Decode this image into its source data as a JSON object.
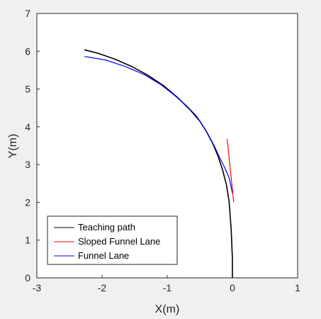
{
  "chart_data": {
    "type": "line",
    "xlabel": "X(m)",
    "ylabel": "Y(m)",
    "xlim": [
      -3,
      1
    ],
    "ylim": [
      0,
      7
    ],
    "xticks": [
      "-3",
      "-2",
      "-1",
      "0",
      "1"
    ],
    "yticks": [
      "0",
      "1",
      "2",
      "3",
      "4",
      "5",
      "6",
      "7"
    ],
    "grid": false,
    "legend_position": "bottom-left",
    "series": [
      {
        "name": "Teaching path",
        "color": "#000000",
        "x": [
          -2.27,
          -2.05,
          -1.8,
          -1.55,
          -1.3,
          -1.05,
          -0.85,
          -0.65,
          -0.5,
          -0.4,
          -0.3,
          -0.22,
          -0.15,
          -0.09,
          -0.05,
          -0.02,
          0.0,
          0.0
        ],
        "y": [
          6.04,
          5.94,
          5.79,
          5.6,
          5.37,
          5.08,
          4.79,
          4.45,
          4.15,
          3.88,
          3.55,
          3.22,
          2.85,
          2.45,
          2.0,
          1.3,
          0.5,
          0.0
        ]
      },
      {
        "name": "Sloped Funnel Lane",
        "color": "#ff0000",
        "x": [
          -0.08,
          0.02
        ],
        "y": [
          3.68,
          2.0
        ]
      },
      {
        "name": "Funnel Lane",
        "color": "#0000ff",
        "x": [
          -2.27,
          -1.95,
          -1.65,
          -1.35,
          -1.1,
          -0.9,
          -0.7,
          -0.55,
          -0.48,
          -0.38,
          -0.28,
          -0.2,
          -0.12,
          -0.05,
          0.0
        ],
        "y": [
          5.86,
          5.77,
          5.6,
          5.38,
          5.12,
          4.85,
          4.55,
          4.28,
          4.1,
          3.82,
          3.5,
          3.2,
          2.92,
          2.65,
          2.25
        ]
      }
    ]
  }
}
